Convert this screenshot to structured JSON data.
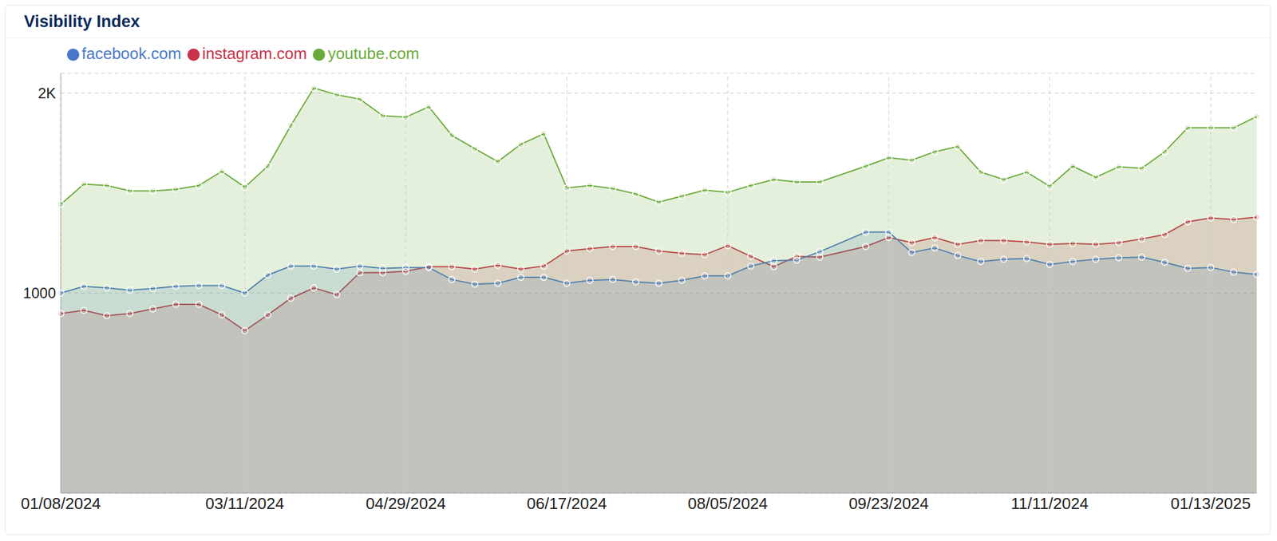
{
  "chart_data": {
    "type": "area",
    "title": "Visibility Index",
    "categories": [
      "01/08/2024",
      null,
      null,
      null,
      null,
      null,
      null,
      null,
      "03/11/2024",
      null,
      null,
      null,
      null,
      null,
      null,
      "04/29/2024",
      null,
      null,
      null,
      null,
      null,
      null,
      "06/17/2024",
      null,
      null,
      null,
      null,
      null,
      null,
      "08/05/2024",
      null,
      null,
      null,
      null,
      null,
      null,
      "09/23/2024",
      null,
      null,
      null,
      null,
      null,
      null,
      "11/11/2024",
      null,
      null,
      null,
      null,
      null,
      null,
      "01/13/2025",
      null,
      null
    ],
    "series": [
      {
        "name": "instagram.com",
        "color": "#c8324a",
        "values": [
          898,
          914,
          887,
          898,
          921,
          944,
          944,
          891,
          812,
          891,
          974,
          1026,
          992,
          1102,
          1102,
          1109,
          1132,
          1132,
          1120,
          1139,
          1120,
          1135,
          1211,
          1222,
          1233,
          1233,
          1211,
          1199,
          1192,
          1237,
          1184,
          1132,
          1184,
          1180,
          null,
          1233,
          1278,
          1252,
          1278,
          1244,
          1263,
          1263,
          1256,
          1244,
          1248,
          1244,
          1252,
          1271,
          1293,
          1357,
          1376,
          1368,
          1380
        ]
      },
      {
        "name": "facebook.com",
        "color": "#4a78c9",
        "values": [
          1000,
          1034,
          1026,
          1015,
          1023,
          1034,
          1038,
          1038,
          1000,
          1090,
          1135,
          1135,
          1120,
          1135,
          1124,
          1128,
          1128,
          1068,
          1045,
          1049,
          1079,
          1079,
          1049,
          1064,
          1068,
          1056,
          1049,
          1064,
          1086,
          1086,
          1135,
          1162,
          1165,
          1207,
          null,
          1305,
          1305,
          1203,
          1226,
          1188,
          1158,
          1169,
          1173,
          1143,
          1158,
          1169,
          1177,
          1180,
          1154,
          1124,
          1128,
          1105,
          1094
        ]
      },
      {
        "name": "youtube.com",
        "color": "#6aaa3a",
        "values": [
          1444,
          1545,
          1538,
          1511,
          1511,
          1519,
          1538,
          1609,
          1530,
          1635,
          1838,
          2026,
          1992,
          1970,
          1887,
          1880,
          1932,
          1789,
          1722,
          1658,
          1744,
          1797,
          1526,
          1538,
          1523,
          1496,
          1455,
          1485,
          1515,
          1504,
          1538,
          1568,
          1556,
          1556,
          null,
          1635,
          1677,
          1665,
          1707,
          1733,
          1605,
          1568,
          1605,
          1534,
          1635,
          1579,
          1632,
          1624,
          1707,
          1827,
          1827,
          1827,
          1883
        ]
      }
    ],
    "ylim": [
      0,
      2100
    ],
    "yticks": [
      1000,
      {
        "value": 2000,
        "label": "2K"
      }
    ],
    "grid": true,
    "legend": "top-left",
    "marker": "circle"
  }
}
